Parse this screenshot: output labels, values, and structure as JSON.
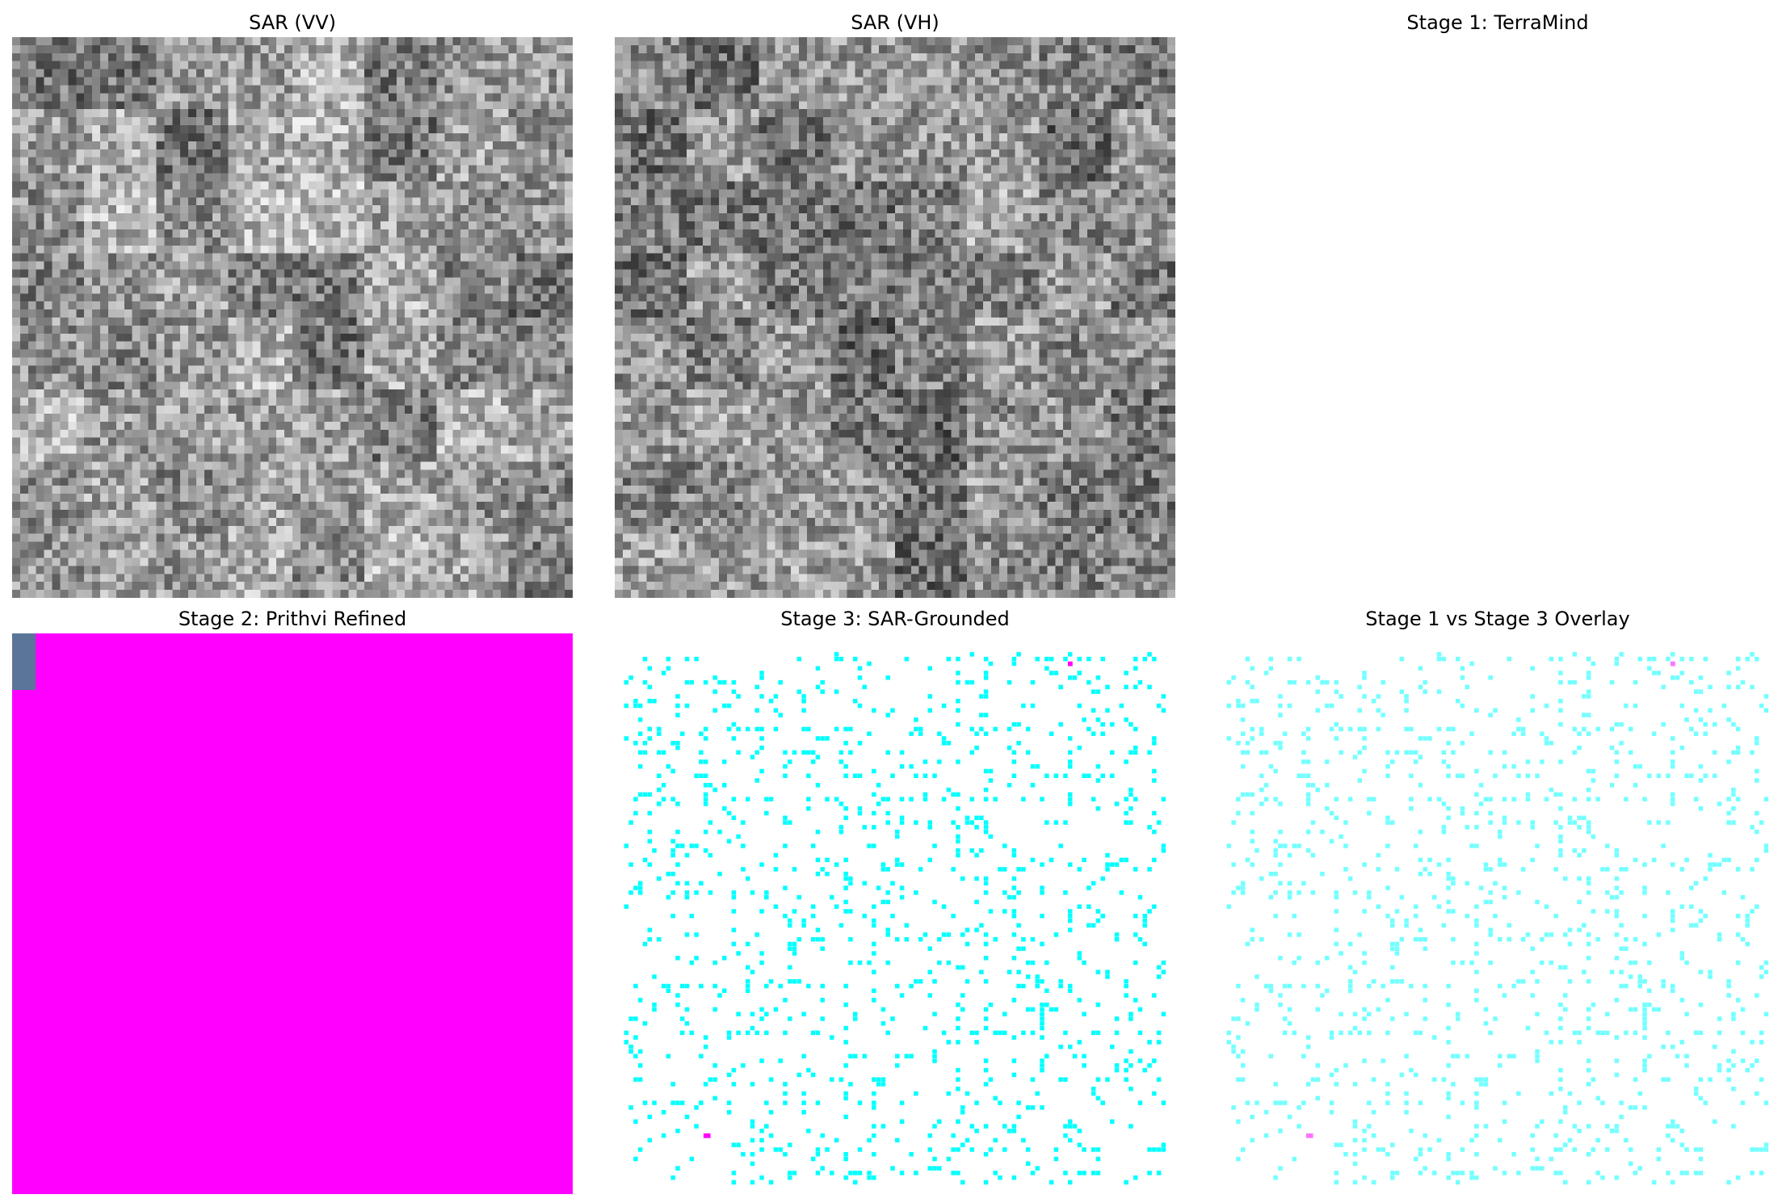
{
  "panels": [
    {
      "title": "SAR (VV)",
      "kind": "sar"
    },
    {
      "title": "SAR (VH)",
      "kind": "sar"
    },
    {
      "title": "Stage 1: TerraMind",
      "kind": "blank"
    },
    {
      "title": "Stage 2: Prithvi Refined",
      "kind": "mask"
    },
    {
      "title": "Stage 3: SAR-Grounded",
      "kind": "sparse"
    },
    {
      "title": "Stage 1 vs Stage 3 Overlay",
      "kind": "sparse-faded"
    }
  ],
  "colors": {
    "magenta": "#ff00ff",
    "cyan": "#00ffff",
    "slate": "#5b7599",
    "background": "#ffffff"
  }
}
